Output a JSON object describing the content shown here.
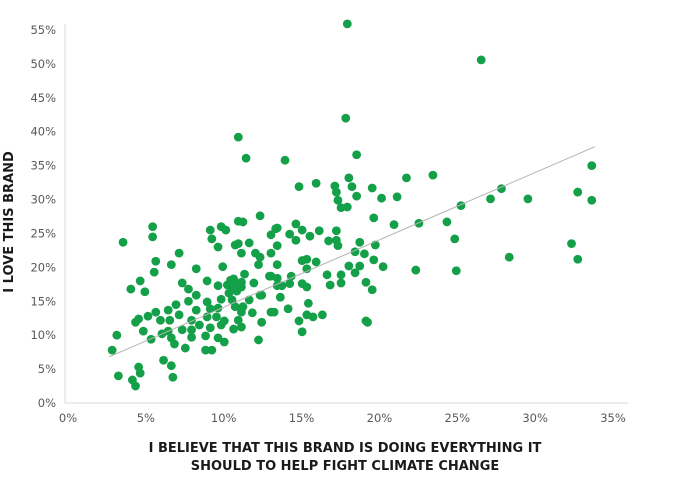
{
  "chart_data": {
    "type": "scatter",
    "title": "",
    "xlabel": [
      "I BELIEVE THAT THIS BRAND IS DOING EVERYTHING IT",
      "SHOULD TO HELP FIGHT CLIMATE CHANGE"
    ],
    "ylabel": "I LOVE THIS BRAND",
    "xlim": [
      0,
      35
    ],
    "ylim": [
      0,
      55
    ],
    "xticks": [
      "0%",
      "5%",
      "10%",
      "15%",
      "20%",
      "25%",
      "30%",
      "35%"
    ],
    "yticks": [
      "0%",
      "5%",
      "10%",
      "15%",
      "20%",
      "25%",
      "30%",
      "35%",
      "40%",
      "45%",
      "50%",
      "55%"
    ],
    "grid": false,
    "marker_color": "#14a049",
    "trendline_color": "#b3b3b3",
    "trendline": {
      "x": [
        2.7,
        33.9
      ],
      "y": [
        6.8,
        37.8
      ]
    },
    "points": [
      [
        18.0,
        55.9
      ],
      [
        26.6,
        50.6
      ],
      [
        17.9,
        42.0
      ],
      [
        18.6,
        36.6
      ],
      [
        11.0,
        39.2
      ],
      [
        11.5,
        36.1
      ],
      [
        14.0,
        35.8
      ],
      [
        33.7,
        35.0
      ],
      [
        32.8,
        31.1
      ],
      [
        33.7,
        29.9
      ],
      [
        32.4,
        23.5
      ],
      [
        32.8,
        21.2
      ],
      [
        27.9,
        31.6
      ],
      [
        27.2,
        30.1
      ],
      [
        29.6,
        30.1
      ],
      [
        28.4,
        21.5
      ],
      [
        23.5,
        33.6
      ],
      [
        21.8,
        33.2
      ],
      [
        25.3,
        29.1
      ],
      [
        24.4,
        26.7
      ],
      [
        24.9,
        24.2
      ],
      [
        25.0,
        19.5
      ],
      [
        22.4,
        19.6
      ],
      [
        22.6,
        26.5
      ],
      [
        21.2,
        30.4
      ],
      [
        20.2,
        30.2
      ],
      [
        19.6,
        31.7
      ],
      [
        19.7,
        27.3
      ],
      [
        21.0,
        26.3
      ],
      [
        19.8,
        23.3
      ],
      [
        20.3,
        20.1
      ],
      [
        19.7,
        21.1
      ],
      [
        19.3,
        11.9
      ],
      [
        18.5,
        19.2
      ],
      [
        18.5,
        22.3
      ],
      [
        19.1,
        22.0
      ],
      [
        18.8,
        23.7
      ],
      [
        18.1,
        20.2
      ],
      [
        18.8,
        20.2
      ],
      [
        18.1,
        33.2
      ],
      [
        18.3,
        31.9
      ],
      [
        18.6,
        30.5
      ],
      [
        17.2,
        32.0
      ],
      [
        17.3,
        31.1
      ],
      [
        17.4,
        29.9
      ],
      [
        17.6,
        28.8
      ],
      [
        18.0,
        28.9
      ],
      [
        14.9,
        31.9
      ],
      [
        16.0,
        32.4
      ],
      [
        13.5,
        25.8
      ],
      [
        13.1,
        24.8
      ],
      [
        14.7,
        26.4
      ],
      [
        15.1,
        25.5
      ],
      [
        14.3,
        24.9
      ],
      [
        14.7,
        24.0
      ],
      [
        15.6,
        24.6
      ],
      [
        16.2,
        25.4
      ],
      [
        17.3,
        25.4
      ],
      [
        16.8,
        23.9
      ],
      [
        17.3,
        24.0
      ],
      [
        17.4,
        23.2
      ],
      [
        13.5,
        23.2
      ],
      [
        13.5,
        20.4
      ],
      [
        15.1,
        21.0
      ],
      [
        15.4,
        21.2
      ],
      [
        16.0,
        20.8
      ],
      [
        15.4,
        19.8
      ],
      [
        16.7,
        18.9
      ],
      [
        17.6,
        18.9
      ],
      [
        17.6,
        17.7
      ],
      [
        16.9,
        17.4
      ],
      [
        19.2,
        17.8
      ],
      [
        19.6,
        16.7
      ],
      [
        13.1,
        18.7
      ],
      [
        13.5,
        18.4
      ],
      [
        14.4,
        18.7
      ],
      [
        13.5,
        17.3
      ],
      [
        13.8,
        17.3
      ],
      [
        14.3,
        17.6
      ],
      [
        15.1,
        17.6
      ],
      [
        15.4,
        17.1
      ],
      [
        13.7,
        15.6
      ],
      [
        15.5,
        14.7
      ],
      [
        14.2,
        13.9
      ],
      [
        13.3,
        13.4
      ],
      [
        15.4,
        13.0
      ],
      [
        15.8,
        12.7
      ],
      [
        16.4,
        13.0
      ],
      [
        14.9,
        12.1
      ],
      [
        19.2,
        12.1
      ],
      [
        12.4,
        15.9
      ],
      [
        15.1,
        10.5
      ],
      [
        12.4,
        27.6
      ],
      [
        11.0,
        26.8
      ],
      [
        11.3,
        26.7
      ],
      [
        5.5,
        26.0
      ],
      [
        5.5,
        24.5
      ],
      [
        3.6,
        23.7
      ],
      [
        9.2,
        25.5
      ],
      [
        9.9,
        26.0
      ],
      [
        10.2,
        25.5
      ],
      [
        9.3,
        24.2
      ],
      [
        9.7,
        23.0
      ],
      [
        10.8,
        23.3
      ],
      [
        11.0,
        23.5
      ],
      [
        11.7,
        23.6
      ],
      [
        11.2,
        22.1
      ],
      [
        12.1,
        22.1
      ],
      [
        12.4,
        21.5
      ],
      [
        12.3,
        20.4
      ],
      [
        13.1,
        22.1
      ],
      [
        13.4,
        25.7
      ],
      [
        7.2,
        22.1
      ],
      [
        6.7,
        20.4
      ],
      [
        5.7,
        20.9
      ],
      [
        5.6,
        19.3
      ],
      [
        8.3,
        19.8
      ],
      [
        10.0,
        20.1
      ],
      [
        11.4,
        19.0
      ],
      [
        13.0,
        18.7
      ],
      [
        4.7,
        18.0
      ],
      [
        4.1,
        16.8
      ],
      [
        5.0,
        16.4
      ],
      [
        7.4,
        17.7
      ],
      [
        9.0,
        18.0
      ],
      [
        7.8,
        16.8
      ],
      [
        8.3,
        15.9
      ],
      [
        9.7,
        17.3
      ],
      [
        10.3,
        17.4
      ],
      [
        10.5,
        18.1
      ],
      [
        10.7,
        18.3
      ],
      [
        10.8,
        17.7
      ],
      [
        10.6,
        17.0
      ],
      [
        11.2,
        17.8
      ],
      [
        11.2,
        17.1
      ],
      [
        10.9,
        16.5
      ],
      [
        10.4,
        16.2
      ],
      [
        12.0,
        17.7
      ],
      [
        12.5,
        15.9
      ],
      [
        11.7,
        15.2
      ],
      [
        11.3,
        14.2
      ],
      [
        11.9,
        13.3
      ],
      [
        12.5,
        11.9
      ],
      [
        12.3,
        9.3
      ],
      [
        13.1,
        13.4
      ],
      [
        7.8,
        15.0
      ],
      [
        7.0,
        14.5
      ],
      [
        6.5,
        13.7
      ],
      [
        5.7,
        13.4
      ],
      [
        5.2,
        12.8
      ],
      [
        4.6,
        12.4
      ],
      [
        4.4,
        11.9
      ],
      [
        6.0,
        12.2
      ],
      [
        6.6,
        12.2
      ],
      [
        7.2,
        13.0
      ],
      [
        8.3,
        13.7
      ],
      [
        9.0,
        14.9
      ],
      [
        9.2,
        13.9
      ],
      [
        9.7,
        14.0
      ],
      [
        9.9,
        15.3
      ],
      [
        10.6,
        15.2
      ],
      [
        10.8,
        14.2
      ],
      [
        11.2,
        13.4
      ],
      [
        11.0,
        12.2
      ],
      [
        10.7,
        10.9
      ],
      [
        11.2,
        11.2
      ],
      [
        10.1,
        12.1
      ],
      [
        9.9,
        11.5
      ],
      [
        9.6,
        12.7
      ],
      [
        9.0,
        12.7
      ],
      [
        8.5,
        11.5
      ],
      [
        8.0,
        12.2
      ],
      [
        8.0,
        10.8
      ],
      [
        8.0,
        9.7
      ],
      [
        4.9,
        10.6
      ],
      [
        6.1,
        10.2
      ],
      [
        6.5,
        10.6
      ],
      [
        6.7,
        9.6
      ],
      [
        6.9,
        8.7
      ],
      [
        5.4,
        9.4
      ],
      [
        7.4,
        10.8
      ],
      [
        7.6,
        8.1
      ],
      [
        8.9,
        9.9
      ],
      [
        9.2,
        11.1
      ],
      [
        9.7,
        9.6
      ],
      [
        10.1,
        9.0
      ],
      [
        8.9,
        7.8
      ],
      [
        9.3,
        7.8
      ],
      [
        3.2,
        10.0
      ],
      [
        2.9,
        7.8
      ],
      [
        6.2,
        6.3
      ],
      [
        6.7,
        5.5
      ],
      [
        6.8,
        3.8
      ],
      [
        4.6,
        5.3
      ],
      [
        4.7,
        4.4
      ],
      [
        3.3,
        4.0
      ],
      [
        4.2,
        3.4
      ],
      [
        4.4,
        2.5
      ]
    ]
  }
}
